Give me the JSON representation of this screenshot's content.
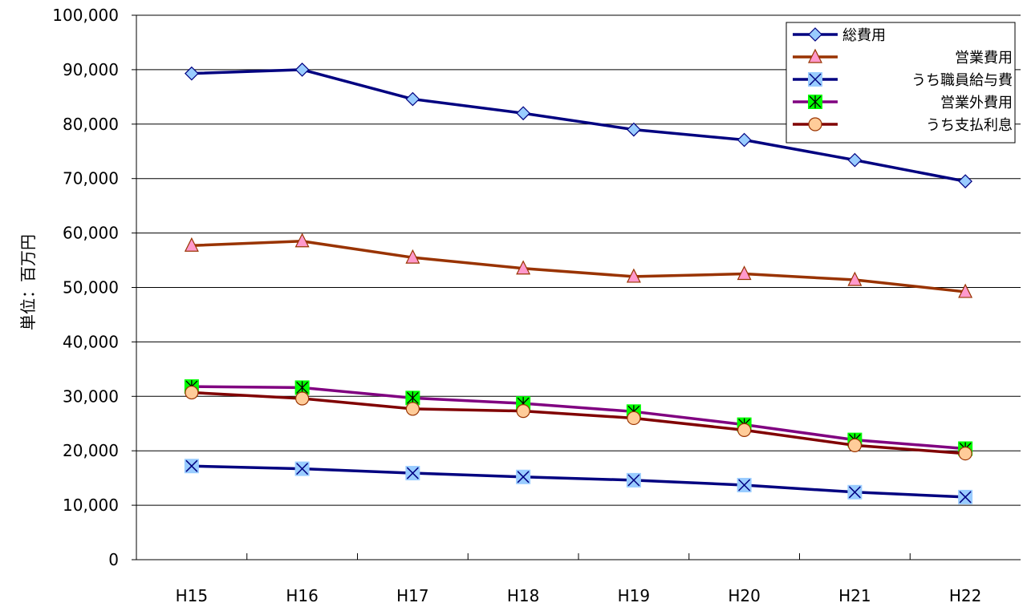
{
  "chart_data": {
    "type": "line",
    "title": "",
    "xlabel": "",
    "ylabel": "単位：百万円",
    "categories": [
      "H15",
      "H16",
      "H17",
      "H18",
      "H19",
      "H20",
      "H21",
      "H22"
    ],
    "ylim": [
      0,
      100000
    ],
    "yticks": [
      {
        "value": 0,
        "label": "0"
      },
      {
        "value": 10000,
        "label": "10,000"
      },
      {
        "value": 20000,
        "label": "20,000"
      },
      {
        "value": 30000,
        "label": "30,000"
      },
      {
        "value": 40000,
        "label": "40,000"
      },
      {
        "value": 50000,
        "label": "50,000"
      },
      {
        "value": 60000,
        "label": "60,000"
      },
      {
        "value": 70000,
        "label": "70,000"
      },
      {
        "value": 80000,
        "label": "80,000"
      },
      {
        "value": 90000,
        "label": "90,000"
      },
      {
        "value": 100000,
        "label": "100,000"
      }
    ],
    "grid": true,
    "legend_position": "top-right",
    "series": [
      {
        "name": "総費用",
        "values": [
          89300,
          90000,
          84600,
          82000,
          79000,
          77100,
          73400,
          69500
        ],
        "line_color": "#000080",
        "marker": "diamond",
        "marker_fill": "#99ccff",
        "marker_stroke": "#000080"
      },
      {
        "name": "営業費用",
        "values": [
          57700,
          58500,
          55500,
          53500,
          52000,
          52500,
          51400,
          49200
        ],
        "line_color": "#993300",
        "marker": "triangle",
        "marker_fill": "#ff99cc",
        "marker_stroke": "#993300"
      },
      {
        "name": "うち職員給与費",
        "values": [
          17200,
          16700,
          15900,
          15200,
          14600,
          13700,
          12400,
          11500
        ],
        "line_color": "#000080",
        "marker": "x-square",
        "marker_fill": "#99ccff",
        "marker_stroke": "#000080"
      },
      {
        "name": "営業外費用",
        "values": [
          31800,
          31600,
          29700,
          28700,
          27200,
          24800,
          22000,
          20400
        ],
        "line_color": "#800080",
        "marker": "star-square",
        "marker_fill": "#00ff00",
        "marker_stroke": "#000000"
      },
      {
        "name": "うち支払利息",
        "values": [
          30700,
          29600,
          27700,
          27300,
          26000,
          23800,
          21000,
          19500
        ],
        "line_color": "#800000",
        "marker": "circle",
        "marker_fill": "#ffcc99",
        "marker_stroke": "#993300"
      }
    ]
  }
}
